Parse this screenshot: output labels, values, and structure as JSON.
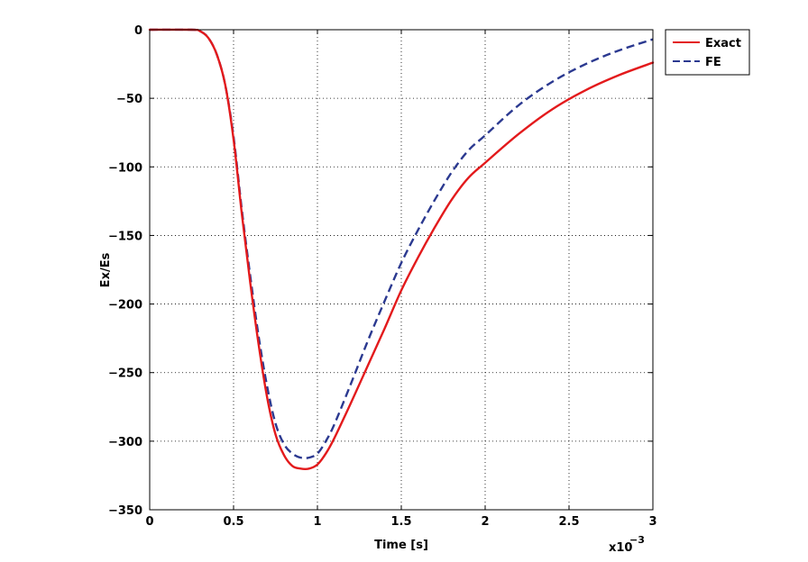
{
  "chart_data": {
    "type": "line",
    "title": "",
    "xlabel": "Time [s]",
    "ylabel": "Ex/Es",
    "x_multiplier_label": "x10",
    "x_multiplier_exponent": "−3",
    "xlim": [
      0,
      3
    ],
    "ylim": [
      -350,
      0
    ],
    "xticks": [
      0,
      0.5,
      1,
      1.5,
      2,
      2.5,
      3
    ],
    "xtick_labels": [
      "0",
      "0.5",
      "1",
      "1.5",
      "2",
      "2.5",
      "3"
    ],
    "yticks": [
      0,
      -50,
      -100,
      -150,
      -200,
      -250,
      -300,
      -350
    ],
    "ytick_labels": [
      "0",
      "−50",
      "−100",
      "−150",
      "−200",
      "−250",
      "−300",
      "−350"
    ],
    "grid": true,
    "legend_position": "outside-top-right",
    "series": [
      {
        "name": "Exact",
        "color": "#e31a1c",
        "style": "solid",
        "x": [
          0,
          0.25,
          0.3,
          0.35,
          0.4,
          0.45,
          0.5,
          0.55,
          0.6,
          0.65,
          0.7,
          0.75,
          0.8,
          0.85,
          0.9,
          0.95,
          1.0,
          1.05,
          1.1,
          1.2,
          1.3,
          1.4,
          1.5,
          1.6,
          1.7,
          1.8,
          1.9,
          2.0,
          2.2,
          2.4,
          2.6,
          2.8,
          3.0
        ],
        "y": [
          0,
          0,
          -1,
          -6,
          -18,
          -40,
          -80,
          -135,
          -185,
          -230,
          -268,
          -295,
          -310,
          -318,
          -320,
          -320,
          -317,
          -309,
          -298,
          -272,
          -245,
          -218,
          -190,
          -166,
          -144,
          -124,
          -108,
          -97,
          -76,
          -58,
          -44,
          -33,
          -24
        ]
      },
      {
        "name": "FE",
        "color": "#2b3990",
        "style": "dashed",
        "x": [
          0,
          0.25,
          0.3,
          0.35,
          0.4,
          0.45,
          0.5,
          0.55,
          0.6,
          0.65,
          0.7,
          0.75,
          0.8,
          0.85,
          0.9,
          0.95,
          1.0,
          1.05,
          1.1,
          1.2,
          1.3,
          1.4,
          1.5,
          1.6,
          1.7,
          1.8,
          1.9,
          2.0,
          2.2,
          2.4,
          2.6,
          2.8,
          3.0
        ],
        "y": [
          0,
          0,
          -1,
          -6,
          -18,
          -40,
          -78,
          -132,
          -180,
          -224,
          -260,
          -287,
          -302,
          -309,
          -312,
          -312,
          -309,
          -300,
          -288,
          -258,
          -227,
          -198,
          -170,
          -146,
          -124,
          -104,
          -88,
          -77,
          -55,
          -38,
          -25,
          -15,
          -7
        ]
      }
    ]
  }
}
